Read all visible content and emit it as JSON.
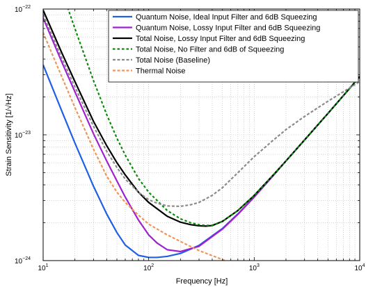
{
  "chart_data": {
    "type": "line",
    "xlabel": "Frequency [Hz]",
    "ylabel": "Strain Sensitivity [1/√Hz]",
    "xscale": "log",
    "yscale": "log",
    "xlim": [
      10,
      10000
    ],
    "ylim": [
      1e-24,
      1e-22
    ],
    "grid": true,
    "legend_position": "top-right",
    "x_ticks": [
      {
        "base": "10",
        "exp": "1"
      },
      {
        "base": "10",
        "exp": "2"
      },
      {
        "base": "10",
        "exp": "3"
      },
      {
        "base": "10",
        "exp": "4"
      }
    ],
    "y_ticks": [
      {
        "base": "10",
        "exp": "−24"
      },
      {
        "base": "10",
        "exp": "−23"
      },
      {
        "base": "10",
        "exp": "−22"
      }
    ],
    "series": [
      {
        "name": "Quantum Noise, Ideal Input Filter and 6dB Squeezing",
        "color": "#1f5fe6",
        "dash": "solid",
        "x": [
          10,
          15,
          20,
          30,
          40,
          50,
          60,
          80,
          100,
          120,
          150,
          200,
          300,
          500,
          700,
          1000,
          1500,
          2000,
          3000,
          5000,
          7000,
          10000
        ],
        "y": [
          3.6e-23,
          1.55e-23,
          8.6e-24,
          3.9e-24,
          2.35e-24,
          1.67e-24,
          1.33e-24,
          1.1e-24,
          1.06e-24,
          1.06e-24,
          1.08e-24,
          1.14e-24,
          1.32e-24,
          1.8e-24,
          2.35e-24,
          3.2e-24,
          4.7e-24,
          6.2e-24,
          9.1e-24,
          1.48e-23,
          2.05e-23,
          2.9e-23
        ]
      },
      {
        "name": "Quantum Noise, Lossy Input Filter and 6dB Squeezing",
        "color": "#a020d0",
        "dash": "solid",
        "x": [
          10,
          15,
          20,
          30,
          40,
          50,
          60,
          80,
          100,
          120,
          150,
          200,
          300,
          500,
          700,
          1000,
          1500,
          2000,
          3000,
          5000,
          7000,
          10000
        ],
        "y": [
          8.5e-23,
          3.8e-23,
          2.2e-23,
          1.02e-23,
          6.2e-24,
          4.3e-24,
          3.2e-24,
          2.1e-24,
          1.6e-24,
          1.38e-24,
          1.22e-24,
          1.18e-24,
          1.3e-24,
          1.78e-24,
          2.33e-24,
          3.2e-24,
          4.7e-24,
          6.2e-24,
          9.1e-24,
          1.48e-23,
          2.05e-23,
          2.9e-23
        ]
      },
      {
        "name": "Total Noise, Lossy Input Filter and 6dB Squeezing",
        "color": "#000000",
        "dash": "solid",
        "x": [
          10,
          15,
          20,
          30,
          40,
          50,
          60,
          80,
          100,
          150,
          200,
          250,
          300,
          350,
          400,
          500,
          700,
          1000,
          1500,
          2000,
          3000,
          5000,
          7000,
          10000
        ],
        "y": [
          9.8e-23,
          4.5e-23,
          2.65e-23,
          1.28e-23,
          8.2e-24,
          6e-24,
          4.8e-24,
          3.5e-24,
          2.9e-24,
          2.25e-24,
          2.02e-24,
          1.93e-24,
          1.89e-24,
          1.88e-24,
          1.9e-24,
          2.05e-24,
          2.5e-24,
          3.3e-24,
          4.75e-24,
          6.2e-24,
          9.1e-24,
          1.48e-23,
          2.05e-23,
          2.9e-23
        ]
      },
      {
        "name": "Total Noise, No Filter and 6dB of Squeezing",
        "color": "#0a8a0a",
        "dash": "dotted",
        "x": [
          15,
          20,
          30,
          40,
          50,
          60,
          80,
          100,
          150,
          200,
          250,
          300,
          350,
          400,
          500,
          700,
          1000,
          1500,
          2000,
          3000,
          5000,
          7000,
          10000
        ],
        "y": [
          1.4e-22,
          7e-23,
          2.7e-23,
          1.45e-23,
          9.4e-24,
          6.9e-24,
          4.5e-24,
          3.5e-24,
          2.5e-24,
          2.15e-24,
          2e-24,
          1.93e-24,
          1.9e-24,
          1.91e-24,
          2.05e-24,
          2.5e-24,
          3.3e-24,
          4.75e-24,
          6.2e-24,
          9.1e-24,
          1.48e-23,
          2.05e-23,
          2.9e-23
        ]
      },
      {
        "name": "Total Noise (Baseline)",
        "color": "#8a8a8a",
        "dash": "dashed",
        "x": [
          10,
          15,
          20,
          30,
          40,
          50,
          60,
          80,
          100,
          120,
          150,
          200,
          250,
          300,
          400,
          500,
          700,
          1000,
          1500,
          2000,
          3000,
          5000,
          7000,
          10000
        ],
        "y": [
          9e-23,
          4.1e-23,
          2.4e-23,
          1.17e-23,
          7.4e-24,
          5.5e-24,
          4.45e-24,
          3.5e-24,
          3.05e-24,
          2.86e-24,
          2.72e-24,
          2.7e-24,
          2.78e-24,
          2.9e-24,
          3.3e-24,
          3.8e-24,
          5e-24,
          6.7e-24,
          9e-24,
          1.1e-23,
          1.4e-23,
          1.85e-23,
          2.2e-23,
          2.65e-23
        ]
      },
      {
        "name": "Thermal Noise",
        "color": "#f0955a",
        "dash": "dashed",
        "x": [
          10,
          15,
          20,
          30,
          40,
          50,
          60,
          80,
          100,
          150,
          200,
          300,
          500,
          700
        ],
        "y": [
          6.5e-23,
          2.9e-23,
          1.65e-23,
          7.7e-24,
          4.7e-24,
          3.5e-24,
          2.9e-24,
          2.3e-24,
          1.95e-24,
          1.6e-24,
          1.42e-24,
          1.2e-24,
          1.02e-24,
          9.2e-25
        ]
      }
    ]
  }
}
